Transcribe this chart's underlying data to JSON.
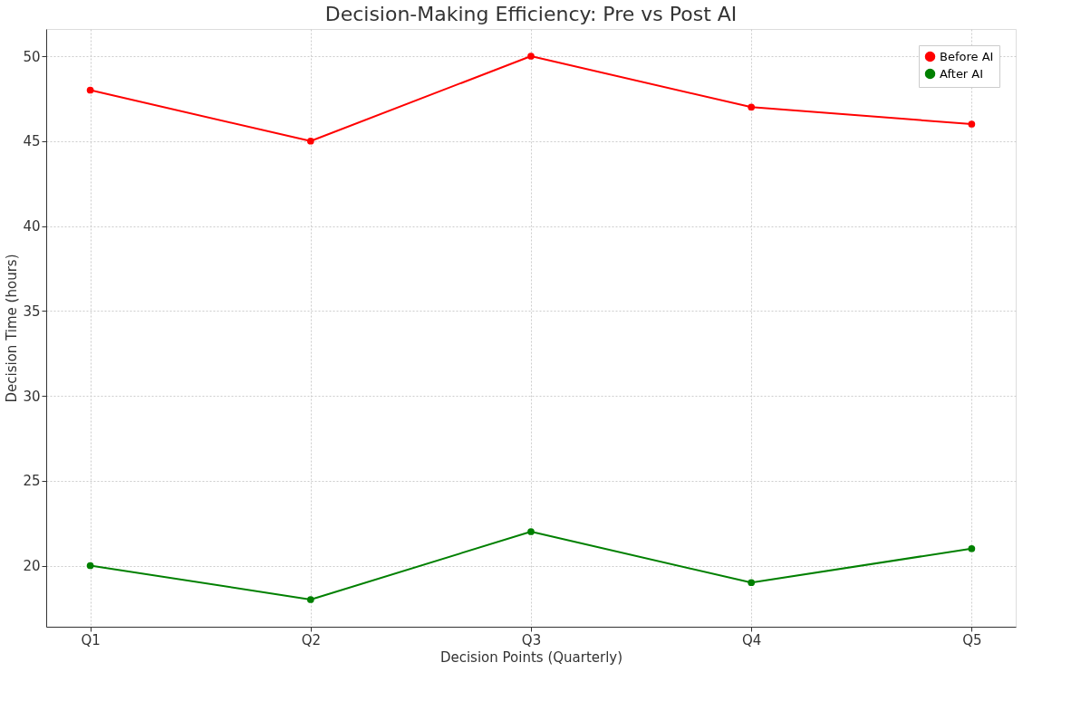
{
  "chart_data": {
    "type": "line",
    "title": "Decision-Making Efficiency: Pre vs Post AI",
    "xlabel": "Decision Points (Quarterly)",
    "ylabel": "Decision Time (hours)",
    "categories": [
      "Q1",
      "Q2",
      "Q3",
      "Q4",
      "Q5"
    ],
    "series": [
      {
        "name": "Before AI",
        "color": "#ff0000",
        "values": [
          48,
          45,
          50,
          47,
          46
        ]
      },
      {
        "name": "After AI",
        "color": "#008000",
        "values": [
          20,
          18,
          22,
          19,
          21
        ]
      }
    ],
    "ylim": [
      16.4,
      51.6
    ],
    "yticks": [
      20,
      25,
      30,
      35,
      40,
      45,
      50
    ],
    "grid": true,
    "legend": "top right",
    "marker": "circle",
    "line_style": "solid"
  }
}
